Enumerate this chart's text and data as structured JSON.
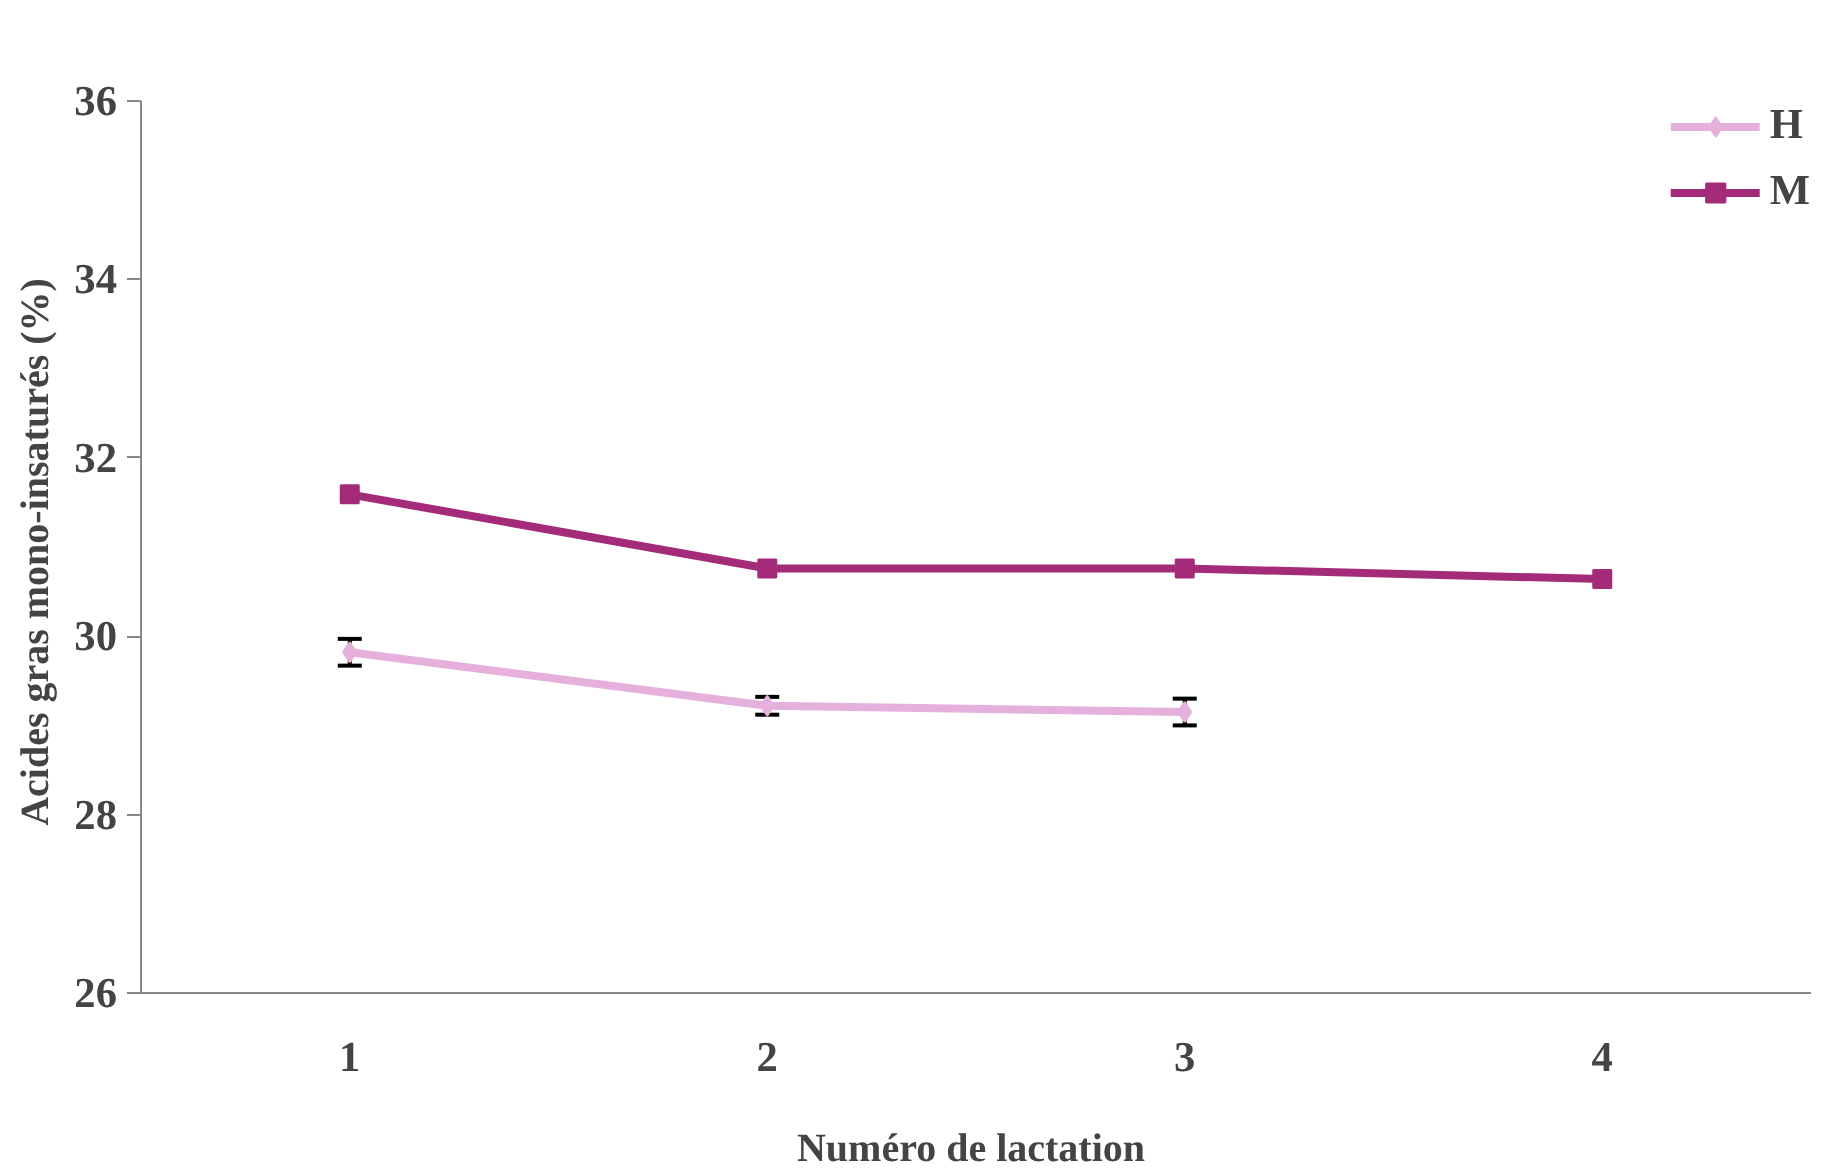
{
  "chart_data": {
    "type": "line",
    "xlabel": "Numéro  de lactation",
    "ylabel": "Acides gras mono-insaturés  (%)",
    "categories": [
      "1",
      "2",
      "3",
      "4"
    ],
    "series": [
      {
        "name": "H",
        "color": "#e6b0dc",
        "marker": "diamond",
        "values": [
          29.82,
          29.22,
          29.15,
          null
        ],
        "errors": [
          0.15,
          0.1,
          0.15,
          null
        ]
      },
      {
        "name": "M",
        "color": "#a32b78",
        "marker": "square",
        "values": [
          31.59,
          30.76,
          30.76,
          30.64
        ]
      }
    ],
    "ylim": [
      26,
      36
    ],
    "yticks": [
      26,
      28,
      30,
      32,
      34,
      36
    ],
    "grid": false,
    "legend": "top right",
    "line_style": "solid"
  }
}
